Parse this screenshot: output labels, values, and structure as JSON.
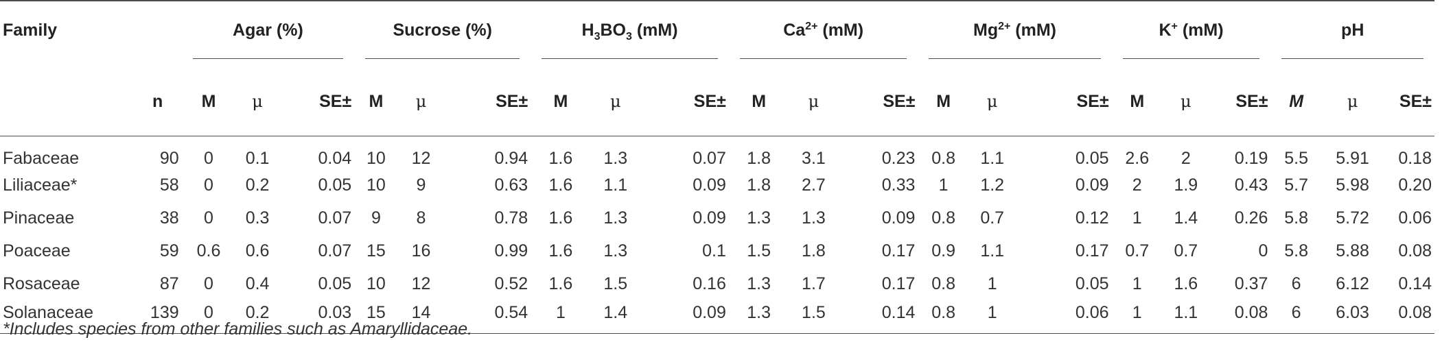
{
  "headers": {
    "family": "Family",
    "n": "n",
    "groups": {
      "agar": "Agar (%)",
      "sucrose": "Sucrose (%)",
      "h3bo3": {
        "pre": "H",
        "sub1": "3",
        "mid": "BO",
        "sub2": "3",
        "post": " (mM)"
      },
      "ca": {
        "base": "Ca",
        "sup": "2+",
        "post": " (mM)"
      },
      "mg": {
        "base": "Mg",
        "sup": "2+",
        "post": " (mM)"
      },
      "k": {
        "base": "K",
        "sup": "+",
        "post": " (mM)"
      },
      "ph": "pH"
    },
    "sub": {
      "m": "M",
      "mu": "μ",
      "se": "SE±"
    }
  },
  "rows": [
    {
      "family": "Fabaceae",
      "n": "90",
      "values": [
        "0",
        "0.1",
        "0.04",
        "10",
        "12",
        "0.94",
        "1.6",
        "1.3",
        "0.07",
        "1.8",
        "3.1",
        "0.23",
        "0.8",
        "1.1",
        "0.05",
        "2.6",
        "2",
        "0.19",
        "5.5",
        "5.91",
        "0.18"
      ]
    },
    {
      "family": "Liliaceae*",
      "n": "58",
      "values": [
        "0",
        "0.2",
        "0.05",
        "10",
        "9",
        "0.63",
        "1.6",
        "1.1",
        "0.09",
        "1.8",
        "2.7",
        "0.33",
        "1",
        "1.2",
        "0.09",
        "2",
        "1.9",
        "0.43",
        "5.7",
        "5.98",
        "0.20"
      ]
    },
    {
      "family": "Pinaceae",
      "n": "38",
      "values": [
        "0",
        "0.3",
        "0.07",
        "9",
        "8",
        "0.78",
        "1.6",
        "1.3",
        "0.09",
        "1.3",
        "1.3",
        "0.09",
        "0.8",
        "0.7",
        "0.12",
        "1",
        "1.4",
        "0.26",
        "5.8",
        "5.72",
        "0.06"
      ]
    },
    {
      "family": "Poaceae",
      "n": "59",
      "values": [
        "0.6",
        "0.6",
        "0.07",
        "15",
        "16",
        "0.99",
        "1.6",
        "1.3",
        "0.1",
        "1.5",
        "1.8",
        "0.17",
        "0.9",
        "1.1",
        "0.17",
        "0.7",
        "0.7",
        "0",
        "5.8",
        "5.88",
        "0.08"
      ]
    },
    {
      "family": "Rosaceae",
      "n": "87",
      "values": [
        "0",
        "0.4",
        "0.05",
        "10",
        "12",
        "0.52",
        "1.6",
        "1.5",
        "0.16",
        "1.3",
        "1.7",
        "0.17",
        "0.8",
        "1",
        "0.05",
        "1",
        "1.6",
        "0.37",
        "6",
        "6.12",
        "0.14"
      ]
    },
    {
      "family": "Solanaceae",
      "n": "139",
      "values": [
        "0",
        "0.2",
        "0.03",
        "15",
        "14",
        "0.54",
        "1",
        "1.4",
        "0.09",
        "1.3",
        "1.5",
        "0.14",
        "0.8",
        "1",
        "0.06",
        "1",
        "1.1",
        "0.08",
        "6",
        "6.03",
        "0.08"
      ]
    }
  ],
  "footnote": "*Includes species from other families such as Amaryllidaceae."
}
